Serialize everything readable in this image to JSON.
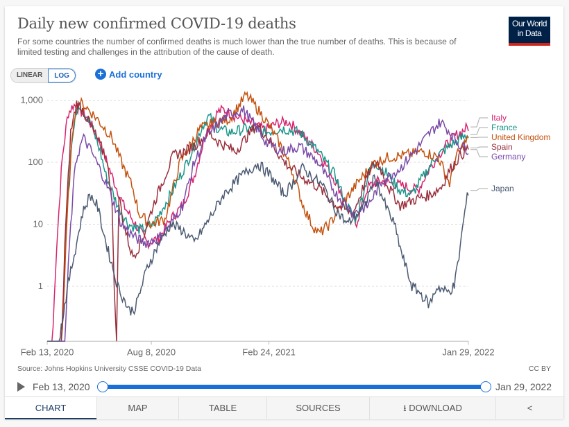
{
  "header": {
    "title": "Daily new confirmed COVID-19 deaths",
    "subtitle": "For some countries the number of confirmed deaths is much lower than the true number of deaths. This is because of limited testing and challenges in the attribution of the cause of death.",
    "logo_line1": "Our World",
    "logo_line2": "in Data"
  },
  "controls": {
    "linear": "LINEAR",
    "log": "LOG",
    "add_country": "Add country"
  },
  "chart_data": {
    "type": "line",
    "title": "Daily new confirmed COVID-19 deaths",
    "x_unit": "days since Feb 13, 2020",
    "y_scale": "log",
    "ylim": [
      0.13,
      1000
    ],
    "xlim": [
      0,
      716
    ],
    "y_ticks": [
      {
        "v": 1000,
        "label": "1,000"
      },
      {
        "v": 100,
        "label": "100"
      },
      {
        "v": 10,
        "label": "10"
      },
      {
        "v": 1,
        "label": "1"
      }
    ],
    "x_ticks": [
      {
        "v": 0,
        "label": "Feb 13, 2020"
      },
      {
        "v": 177,
        "label": "Aug 8, 2020"
      },
      {
        "v": 377,
        "label": "Feb 24, 2021"
      },
      {
        "v": 716,
        "label": "Jan 29, 2022"
      }
    ],
    "series": [
      {
        "name": "Italy",
        "color": "#d6246e",
        "points": [
          [
            0,
            0.13
          ],
          [
            9,
            0.13
          ],
          [
            15,
            3
          ],
          [
            25,
            100
          ],
          [
            35,
            600
          ],
          [
            45,
            850
          ],
          [
            55,
            700
          ],
          [
            70,
            500
          ],
          [
            90,
            200
          ],
          [
            110,
            60
          ],
          [
            130,
            20
          ],
          [
            150,
            10
          ],
          [
            170,
            5
          ],
          [
            190,
            6
          ],
          [
            210,
            12
          ],
          [
            230,
            20
          ],
          [
            250,
            60
          ],
          [
            270,
            300
          ],
          [
            290,
            650
          ],
          [
            300,
            700
          ],
          [
            320,
            550
          ],
          [
            340,
            450
          ],
          [
            370,
            330
          ],
          [
            390,
            420
          ],
          [
            410,
            450
          ],
          [
            430,
            300
          ],
          [
            460,
            150
          ],
          [
            490,
            50
          ],
          [
            510,
            20
          ],
          [
            525,
            10
          ],
          [
            545,
            40
          ],
          [
            565,
            50
          ],
          [
            590,
            45
          ],
          [
            610,
            40
          ],
          [
            630,
            35
          ],
          [
            650,
            80
          ],
          [
            670,
            150
          ],
          [
            690,
            250
          ],
          [
            716,
            370
          ]
        ]
      },
      {
        "name": "France",
        "color": "#18968a",
        "points": [
          [
            0,
            0.13
          ],
          [
            25,
            0.13
          ],
          [
            32,
            10
          ],
          [
            40,
            150
          ],
          [
            52,
            950
          ],
          [
            60,
            700
          ],
          [
            75,
            400
          ],
          [
            90,
            150
          ],
          [
            100,
            60
          ],
          [
            120,
            20
          ],
          [
            138,
            10
          ],
          [
            160,
            8
          ],
          [
            180,
            10
          ],
          [
            210,
            30
          ],
          [
            238,
            100
          ],
          [
            265,
            400
          ],
          [
            275,
            550
          ],
          [
            290,
            350
          ],
          [
            310,
            300
          ],
          [
            340,
            350
          ],
          [
            370,
            300
          ],
          [
            400,
            350
          ],
          [
            430,
            300
          ],
          [
            460,
            150
          ],
          [
            490,
            60
          ],
          [
            509,
            20
          ],
          [
            525,
            12
          ],
          [
            545,
            60
          ],
          [
            557,
            100
          ],
          [
            575,
            70
          ],
          [
            600,
            35
          ],
          [
            620,
            30
          ],
          [
            640,
            60
          ],
          [
            660,
            120
          ],
          [
            690,
            200
          ],
          [
            716,
            280
          ]
        ]
      },
      {
        "name": "United Kingdom",
        "color": "#c4520f",
        "points": [
          [
            0,
            0.13
          ],
          [
            25,
            0.13
          ],
          [
            35,
            20
          ],
          [
            45,
            500
          ],
          [
            52,
            950
          ],
          [
            65,
            800
          ],
          [
            85,
            500
          ],
          [
            110,
            250
          ],
          [
            126,
            100
          ],
          [
            145,
            40
          ],
          [
            156,
            15
          ],
          [
            175,
            10
          ],
          [
            200,
            12
          ],
          [
            226,
            100
          ],
          [
            260,
            350
          ],
          [
            290,
            450
          ],
          [
            310,
            500
          ],
          [
            325,
            800
          ],
          [
            338,
            1200
          ],
          [
            350,
            900
          ],
          [
            370,
            500
          ],
          [
            395,
            200
          ],
          [
            415,
            80
          ],
          [
            435,
            20
          ],
          [
            450,
            10
          ],
          [
            462,
            7
          ],
          [
            480,
            10
          ],
          [
            500,
            20
          ],
          [
            530,
            50
          ],
          [
            557,
            100
          ],
          [
            580,
            120
          ],
          [
            610,
            130
          ],
          [
            640,
            150
          ],
          [
            665,
            120
          ],
          [
            684,
            45
          ],
          [
            695,
            120
          ],
          [
            716,
            250
          ]
        ]
      },
      {
        "name": "Spain",
        "color": "#9a2f3c",
        "points": [
          [
            0,
            0.13
          ],
          [
            25,
            0.13
          ],
          [
            30,
            5
          ],
          [
            40,
            300
          ],
          [
            50,
            900
          ],
          [
            60,
            700
          ],
          [
            80,
            300
          ],
          [
            100,
            120
          ],
          [
            110,
            30
          ],
          [
            114,
            0.8
          ],
          [
            118,
            0.15
          ],
          [
            122,
            30
          ],
          [
            130,
            10
          ],
          [
            145,
            3
          ],
          [
            160,
            5
          ],
          [
            180,
            20
          ],
          [
            200,
            60
          ],
          [
            215,
            130
          ],
          [
            235,
            150
          ],
          [
            255,
            200
          ],
          [
            274,
            300
          ],
          [
            295,
            200
          ],
          [
            320,
            150
          ],
          [
            345,
            300
          ],
          [
            356,
            400
          ],
          [
            375,
            250
          ],
          [
            403,
            100
          ],
          [
            430,
            60
          ],
          [
            460,
            40
          ],
          [
            492,
            20
          ],
          [
            520,
            15
          ],
          [
            550,
            80
          ],
          [
            562,
            100
          ],
          [
            580,
            40
          ],
          [
            600,
            20
          ],
          [
            625,
            25
          ],
          [
            651,
            30
          ],
          [
            670,
            40
          ],
          [
            686,
            80
          ],
          [
            700,
            120
          ],
          [
            716,
            170
          ]
        ]
      },
      {
        "name": "Germany",
        "color": "#7a4aa8",
        "points": [
          [
            0,
            0.13
          ],
          [
            30,
            0.13
          ],
          [
            38,
            5
          ],
          [
            48,
            100
          ],
          [
            61,
            250
          ],
          [
            75,
            150
          ],
          [
            95,
            60
          ],
          [
            115,
            20
          ],
          [
            126,
            10
          ],
          [
            150,
            6
          ],
          [
            167,
            5
          ],
          [
            190,
            6
          ],
          [
            210,
            10
          ],
          [
            230,
            20
          ],
          [
            250,
            100
          ],
          [
            270,
            250
          ],
          [
            290,
            400
          ],
          [
            309,
            600
          ],
          [
            333,
            700
          ],
          [
            345,
            500
          ],
          [
            374,
            200
          ],
          [
            400,
            150
          ],
          [
            430,
            180
          ],
          [
            460,
            100
          ],
          [
            492,
            30
          ],
          [
            521,
            15
          ],
          [
            545,
            20
          ],
          [
            570,
            50
          ],
          [
            600,
            80
          ],
          [
            625,
            150
          ],
          [
            651,
            300
          ],
          [
            669,
            450
          ],
          [
            685,
            300
          ],
          [
            698,
            200
          ],
          [
            716,
            160
          ]
        ]
      },
      {
        "name": "Japan",
        "color": "#4b5a72",
        "points": [
          [
            0,
            0.13
          ],
          [
            20,
            0.13
          ],
          [
            35,
            1
          ],
          [
            50,
            5
          ],
          [
            60,
            15
          ],
          [
            73,
            30
          ],
          [
            85,
            20
          ],
          [
            100,
            5
          ],
          [
            120,
            1
          ],
          [
            140,
            0.4
          ],
          [
            150,
            0.45
          ],
          [
            170,
            2
          ],
          [
            190,
            5
          ],
          [
            210,
            10
          ],
          [
            230,
            8
          ],
          [
            250,
            5
          ],
          [
            270,
            10
          ],
          [
            300,
            30
          ],
          [
            330,
            60
          ],
          [
            358,
            95
          ],
          [
            380,
            60
          ],
          [
            403,
            30
          ],
          [
            420,
            50
          ],
          [
            433,
            80
          ],
          [
            450,
            60
          ],
          [
            470,
            40
          ],
          [
            486,
            20
          ],
          [
            510,
            10
          ],
          [
            540,
            20
          ],
          [
            557,
            60
          ],
          [
            575,
            20
          ],
          [
            590,
            10
          ],
          [
            604,
            3
          ],
          [
            620,
            1
          ],
          [
            633,
            0.8
          ],
          [
            650,
            0.5
          ],
          [
            663,
            1
          ],
          [
            680,
            0.8
          ],
          [
            692,
            1
          ],
          [
            700,
            3
          ],
          [
            708,
            12
          ],
          [
            716,
            35
          ]
        ]
      }
    ]
  },
  "footer": {
    "source": "Source: Johns Hopkins University CSSE COVID-19 Data",
    "license": "CC BY"
  },
  "timeline": {
    "start": "Feb 13, 2020",
    "end": "Jan 29, 2022",
    "range_start_fraction": 0,
    "range_end_fraction": 1
  },
  "tabs": [
    {
      "label": "CHART"
    },
    {
      "label": "MAP"
    },
    {
      "label": "TABLE"
    },
    {
      "label": "SOURCES"
    },
    {
      "label": "DOWNLOAD"
    },
    {
      "label": ""
    }
  ]
}
